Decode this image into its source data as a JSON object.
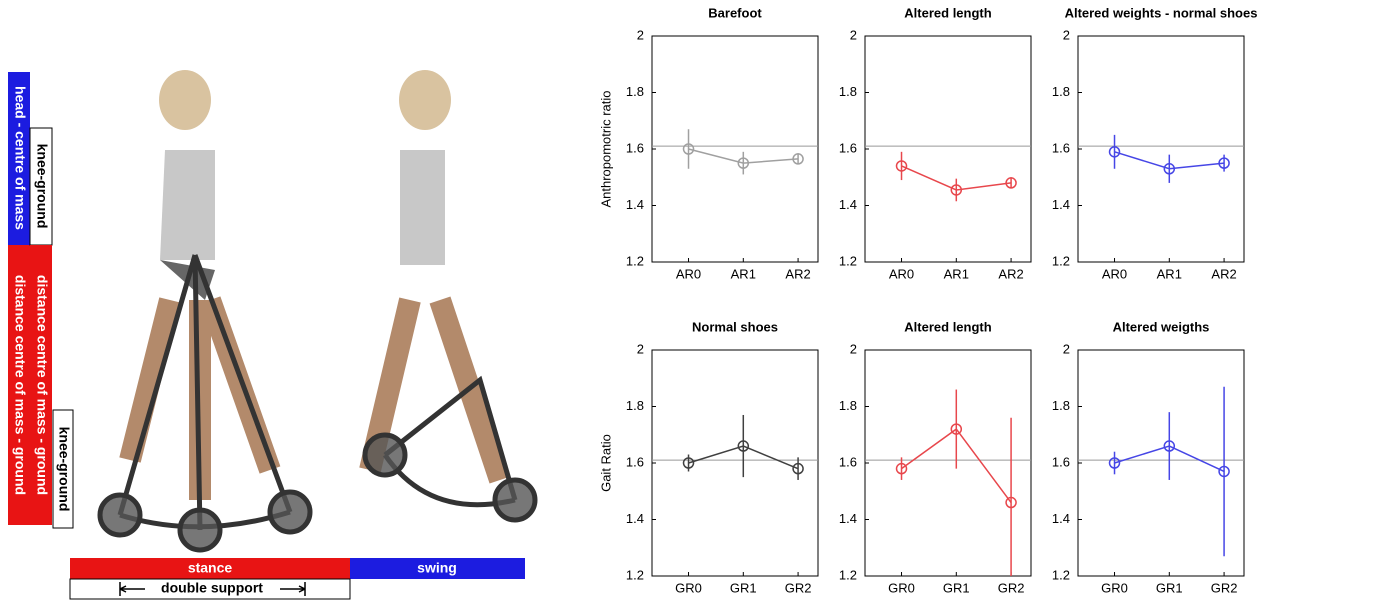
{
  "diagram": {
    "labels": [
      "head - centre of mass",
      "distance centre of mass - ground",
      "knee-ground",
      "distance centre of mass - ground",
      "knee-ground"
    ],
    "phases": {
      "stance": "stance",
      "swing": "swing",
      "double_support": "double support"
    }
  },
  "chart_data": [
    {
      "type": "errorbar",
      "title": "Barefoot",
      "ylabel": "Anthropomotric ratio",
      "categories": [
        "AR0",
        "AR1",
        "AR2"
      ],
      "series": [
        {
          "color": "#a0a0a0",
          "values": [
            1.6,
            1.55,
            1.565
          ],
          "errors": [
            0.07,
            0.04,
            0.02
          ]
        }
      ],
      "ylim": [
        1.2,
        2
      ],
      "yticks": [
        1.2,
        1.4,
        1.6,
        1.8,
        2
      ],
      "reference_line": 1.61
    },
    {
      "type": "errorbar",
      "title": "Altered length",
      "categories": [
        "AR0",
        "AR1",
        "AR2"
      ],
      "series": [
        {
          "color": "#e8474c",
          "values": [
            1.54,
            1.455,
            1.48
          ],
          "errors": [
            0.05,
            0.04,
            0.02
          ]
        }
      ],
      "ylim": [
        1.2,
        2
      ],
      "yticks": [
        1.2,
        1.4,
        1.6,
        1.8,
        2
      ],
      "reference_line": 1.61
    },
    {
      "type": "errorbar",
      "title": "Altered weights - normal shoes",
      "categories": [
        "AR0",
        "AR1",
        "AR2"
      ],
      "series": [
        {
          "color": "#4646e6",
          "values": [
            1.59,
            1.53,
            1.55
          ],
          "errors": [
            0.06,
            0.05,
            0.03
          ]
        }
      ],
      "ylim": [
        1.2,
        2
      ],
      "yticks": [
        1.2,
        1.4,
        1.6,
        1.8,
        2
      ],
      "reference_line": 1.61
    },
    {
      "type": "errorbar",
      "title": "Normal shoes",
      "ylabel": "Gait Ratio",
      "categories": [
        "GR0",
        "GR1",
        "GR2"
      ],
      "series": [
        {
          "color": "#404040",
          "values": [
            1.6,
            1.66,
            1.58
          ],
          "errors": [
            0.03,
            0.11,
            0.04
          ]
        }
      ],
      "ylim": [
        1.2,
        2
      ],
      "yticks": [
        1.2,
        1.4,
        1.6,
        1.8,
        2
      ],
      "reference_line": 1.61
    },
    {
      "type": "errorbar",
      "title": "Altered length",
      "categories": [
        "GR0",
        "GR1",
        "GR2"
      ],
      "series": [
        {
          "color": "#e8474c",
          "values": [
            1.58,
            1.72,
            1.46
          ],
          "errors": [
            0.04,
            0.14,
            0.3
          ]
        }
      ],
      "ylim": [
        1.2,
        2
      ],
      "yticks": [
        1.2,
        1.4,
        1.6,
        1.8,
        2
      ],
      "reference_line": 1.61
    },
    {
      "type": "errorbar",
      "title": "Altered weigths",
      "categories": [
        "GR0",
        "GR1",
        "GR2"
      ],
      "series": [
        {
          "color": "#4646e6",
          "values": [
            1.6,
            1.66,
            1.57
          ],
          "errors": [
            0.04,
            0.12,
            0.3
          ]
        }
      ],
      "ylim": [
        1.2,
        2
      ],
      "yticks": [
        1.2,
        1.4,
        1.6,
        1.8,
        2
      ],
      "reference_line": 1.61
    }
  ]
}
